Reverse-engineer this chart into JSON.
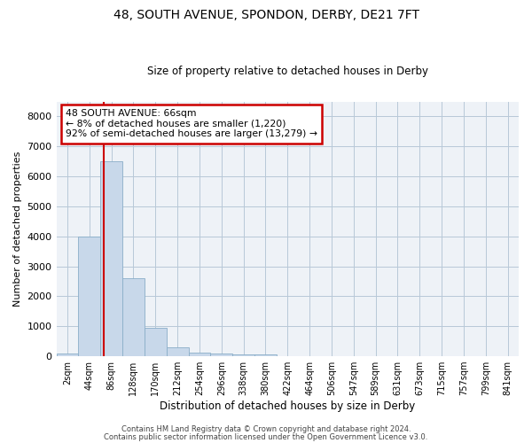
{
  "title": "48, SOUTH AVENUE, SPONDON, DERBY, DE21 7FT",
  "subtitle": "Size of property relative to detached houses in Derby",
  "xlabel": "Distribution of detached houses by size in Derby",
  "ylabel": "Number of detached properties",
  "bar_color": "#c8d8ea",
  "bar_edge_color": "#8aaec8",
  "categories": [
    "2sqm",
    "44sqm",
    "86sqm",
    "128sqm",
    "170sqm",
    "212sqm",
    "254sqm",
    "296sqm",
    "338sqm",
    "380sqm",
    "422sqm",
    "464sqm",
    "506sqm",
    "547sqm",
    "589sqm",
    "631sqm",
    "673sqm",
    "715sqm",
    "757sqm",
    "799sqm",
    "841sqm"
  ],
  "values": [
    80,
    4000,
    6500,
    2600,
    960,
    310,
    120,
    95,
    65,
    55,
    0,
    0,
    0,
    0,
    0,
    0,
    0,
    0,
    0,
    0,
    0
  ],
  "ylim": [
    0,
    8500
  ],
  "yticks": [
    0,
    1000,
    2000,
    3000,
    4000,
    5000,
    6000,
    7000,
    8000
  ],
  "vline_x": 1.65,
  "vline_color": "#cc0000",
  "annotation_text": "48 SOUTH AVENUE: 66sqm\n← 8% of detached houses are smaller (1,220)\n92% of semi-detached houses are larger (13,279) →",
  "footer1": "Contains HM Land Registry data © Crown copyright and database right 2024.",
  "footer2": "Contains public sector information licensed under the Open Government Licence v3.0.",
  "background_color": "#eef2f7",
  "grid_color": "#b8c8d8"
}
